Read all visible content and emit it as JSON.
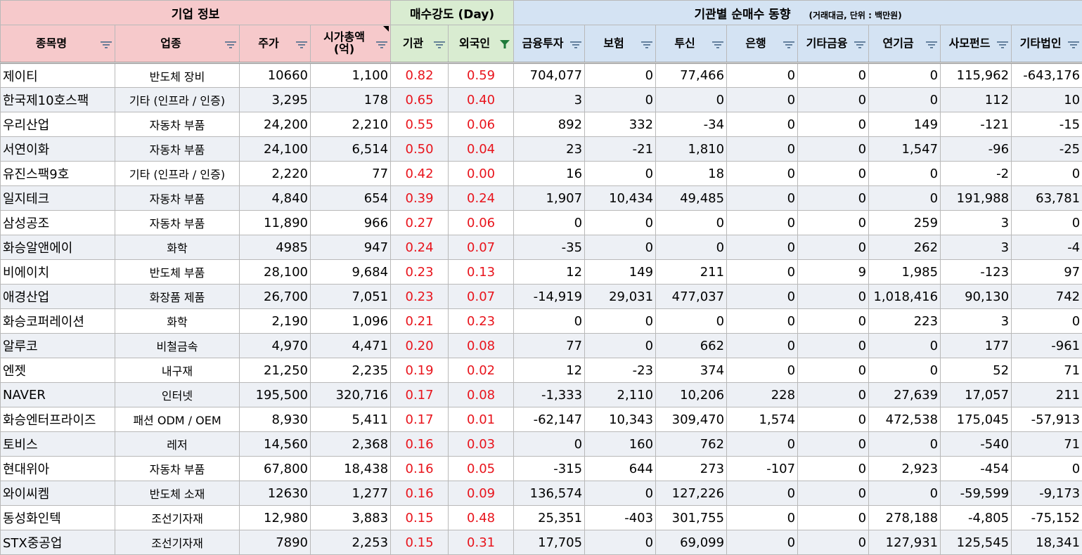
{
  "groups": {
    "info": "기업 정보",
    "strength": "매수강도 (Day)",
    "inst": "기관별 순매수 동향",
    "inst_note": "(거래대금, 단위 : 백만원)"
  },
  "columns": [
    "종목명",
    "업종",
    "주가",
    "시가총액\n(억)",
    "기관",
    "외국인",
    "금융투자",
    "보험",
    "투신",
    "은행",
    "기타금융",
    "연기금",
    "사모펀드",
    "기타법인"
  ],
  "filter_active_column": "외국인",
  "colors": {
    "info": "#f6c9cb",
    "strength": "#d9ecd1",
    "inst": "#d4e3f3",
    "red_text": "#e8141c",
    "alt_row": "#edf0f5",
    "filter_active": "#1e7a3a"
  },
  "rows": [
    [
      "제이티",
      "반도체 장비",
      "10660",
      "1,100",
      "0.82",
      "0.59",
      "704,077",
      "0",
      "77,466",
      "0",
      "0",
      "0",
      "115,962",
      "-643,176"
    ],
    [
      "한국제10호스팩",
      "기타 (인프라 / 인증)",
      "3,295",
      "178",
      "0.65",
      "0.40",
      "3",
      "0",
      "0",
      "0",
      "0",
      "0",
      "112",
      "10"
    ],
    [
      "우리산업",
      "자동차 부품",
      "24,200",
      "2,210",
      "0.55",
      "0.06",
      "892",
      "332",
      "-34",
      "0",
      "0",
      "149",
      "-121",
      "-15"
    ],
    [
      "서연이화",
      "자동차 부품",
      "24,100",
      "6,514",
      "0.50",
      "0.04",
      "23",
      "-21",
      "1,810",
      "0",
      "0",
      "1,547",
      "-96",
      "-25"
    ],
    [
      "유진스팩9호",
      "기타 (인프라 / 인증)",
      "2,220",
      "77",
      "0.42",
      "0.00",
      "16",
      "0",
      "18",
      "0",
      "0",
      "0",
      "-2",
      "0"
    ],
    [
      "일지테크",
      "자동차 부품",
      "4,840",
      "654",
      "0.39",
      "0.24",
      "1,907",
      "10,434",
      "49,485",
      "0",
      "0",
      "0",
      "191,988",
      "63,781"
    ],
    [
      "삼성공조",
      "자동차 부품",
      "11,890",
      "966",
      "0.27",
      "0.06",
      "0",
      "0",
      "0",
      "0",
      "0",
      "259",
      "3",
      "0"
    ],
    [
      "화승알앤에이",
      "화학",
      "4985",
      "947",
      "0.24",
      "0.07",
      "-35",
      "0",
      "0",
      "0",
      "0",
      "262",
      "3",
      "-4"
    ],
    [
      "비에이치",
      "반도체 부품",
      "28,100",
      "9,684",
      "0.23",
      "0.13",
      "12",
      "149",
      "211",
      "0",
      "9",
      "1,985",
      "-123",
      "97"
    ],
    [
      "애경산업",
      "화장품 제품",
      "26,700",
      "7,051",
      "0.23",
      "0.07",
      "-14,919",
      "29,031",
      "477,037",
      "0",
      "0",
      "1,018,416",
      "90,130",
      "742"
    ],
    [
      "화승코퍼레이션",
      "화학",
      "2,190",
      "1,096",
      "0.21",
      "0.23",
      "0",
      "0",
      "0",
      "0",
      "0",
      "223",
      "3",
      "0"
    ],
    [
      "알루코",
      "비철금속",
      "4,970",
      "4,471",
      "0.20",
      "0.08",
      "77",
      "0",
      "662",
      "0",
      "0",
      "0",
      "177",
      "-961"
    ],
    [
      "엔젯",
      "내구재",
      "21,250",
      "2,235",
      "0.19",
      "0.02",
      "12",
      "-23",
      "374",
      "0",
      "0",
      "0",
      "52",
      "71"
    ],
    [
      "NAVER",
      "인터넷",
      "195,500",
      "320,716",
      "0.17",
      "0.08",
      "-1,333",
      "2,110",
      "10,206",
      "228",
      "0",
      "27,639",
      "17,057",
      "211"
    ],
    [
      "화승엔터프라이즈",
      "패션 ODM / OEM",
      "8,930",
      "5,411",
      "0.17",
      "0.01",
      "-62,147",
      "10,343",
      "309,470",
      "1,574",
      "0",
      "472,538",
      "175,045",
      "-57,913"
    ],
    [
      "토비스",
      "레저",
      "14,560",
      "2,368",
      "0.16",
      "0.03",
      "0",
      "160",
      "762",
      "0",
      "0",
      "0",
      "-540",
      "71"
    ],
    [
      "현대위아",
      "자동차 부품",
      "67,800",
      "18,438",
      "0.16",
      "0.05",
      "-315",
      "644",
      "273",
      "-107",
      "0",
      "2,923",
      "-454",
      "0"
    ],
    [
      "와이씨켐",
      "반도체 소재",
      "12630",
      "1,277",
      "0.16",
      "0.09",
      "136,574",
      "0",
      "127,226",
      "0",
      "0",
      "0",
      "-59,599",
      "-9,173"
    ],
    [
      "동성화인텍",
      "조선기자재",
      "12,980",
      "3,883",
      "0.15",
      "0.48",
      "25,351",
      "-403",
      "301,755",
      "0",
      "0",
      "278,188",
      "-4,805",
      "-75,152"
    ],
    [
      "STX중공업",
      "조선기자재",
      "7890",
      "2,253",
      "0.15",
      "0.31",
      "17,705",
      "0",
      "69,099",
      "0",
      "0",
      "127,931",
      "125,545",
      "18,341"
    ]
  ]
}
